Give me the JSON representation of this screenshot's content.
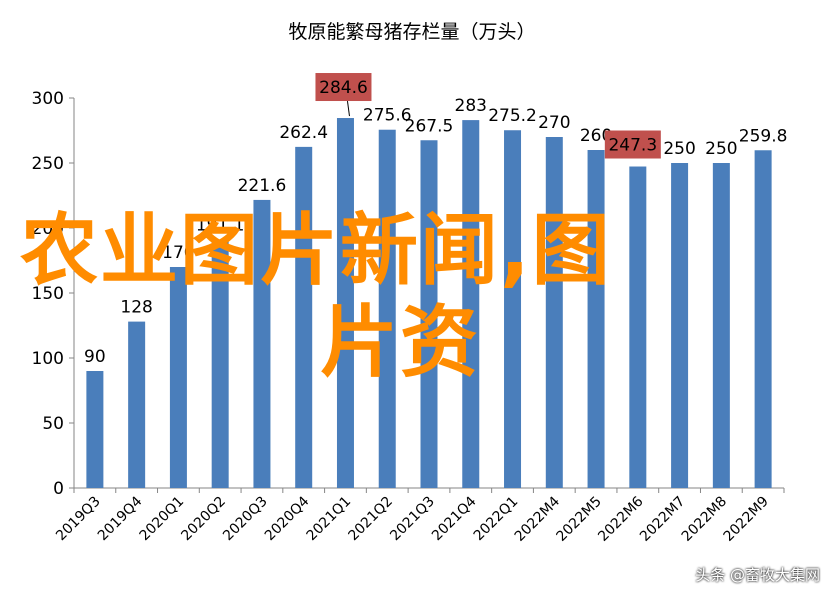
{
  "chart_data": {
    "type": "bar",
    "title": "牧原能繁母猪存栏量（万头）",
    "categories": [
      "2019Q3",
      "2019Q4",
      "2020Q1",
      "2020Q2",
      "2020Q3",
      "2020Q4",
      "2021Q1",
      "2021Q2",
      "2021Q3",
      "2021Q4",
      "2022Q1",
      "2022M4",
      "2022M5",
      "2022M6",
      "2022M7",
      "2022M8",
      "2022M9"
    ],
    "values": [
      90,
      128,
      170,
      191.1,
      221.6,
      262.4,
      284.6,
      275.6,
      267.5,
      283,
      275.2,
      270,
      260,
      247.3,
      250,
      250,
      259.8
    ],
    "value_labels": [
      "90",
      "128",
      "170",
      "191.1",
      "221.6",
      "262.4",
      "284.6",
      "275.6",
      "267.5",
      "283",
      "275.2",
      "270",
      "260",
      "247.3",
      "250",
      "250",
      "259.8"
    ],
    "highlighted_labels": [
      "284.6",
      "247.3"
    ],
    "ylim": [
      0,
      300
    ],
    "yticks": [
      0,
      50,
      100,
      150,
      200,
      250,
      300
    ],
    "xlabel": "",
    "ylabel": "",
    "grid": false,
    "bar_color": "#4a7ebb",
    "highlight_color": "#c0504d"
  },
  "overlay": {
    "line1": "农业图片新闻,图",
    "line2": "片资",
    "color": "#ff8c00"
  },
  "watermark": "头条 @畜牧大集网"
}
